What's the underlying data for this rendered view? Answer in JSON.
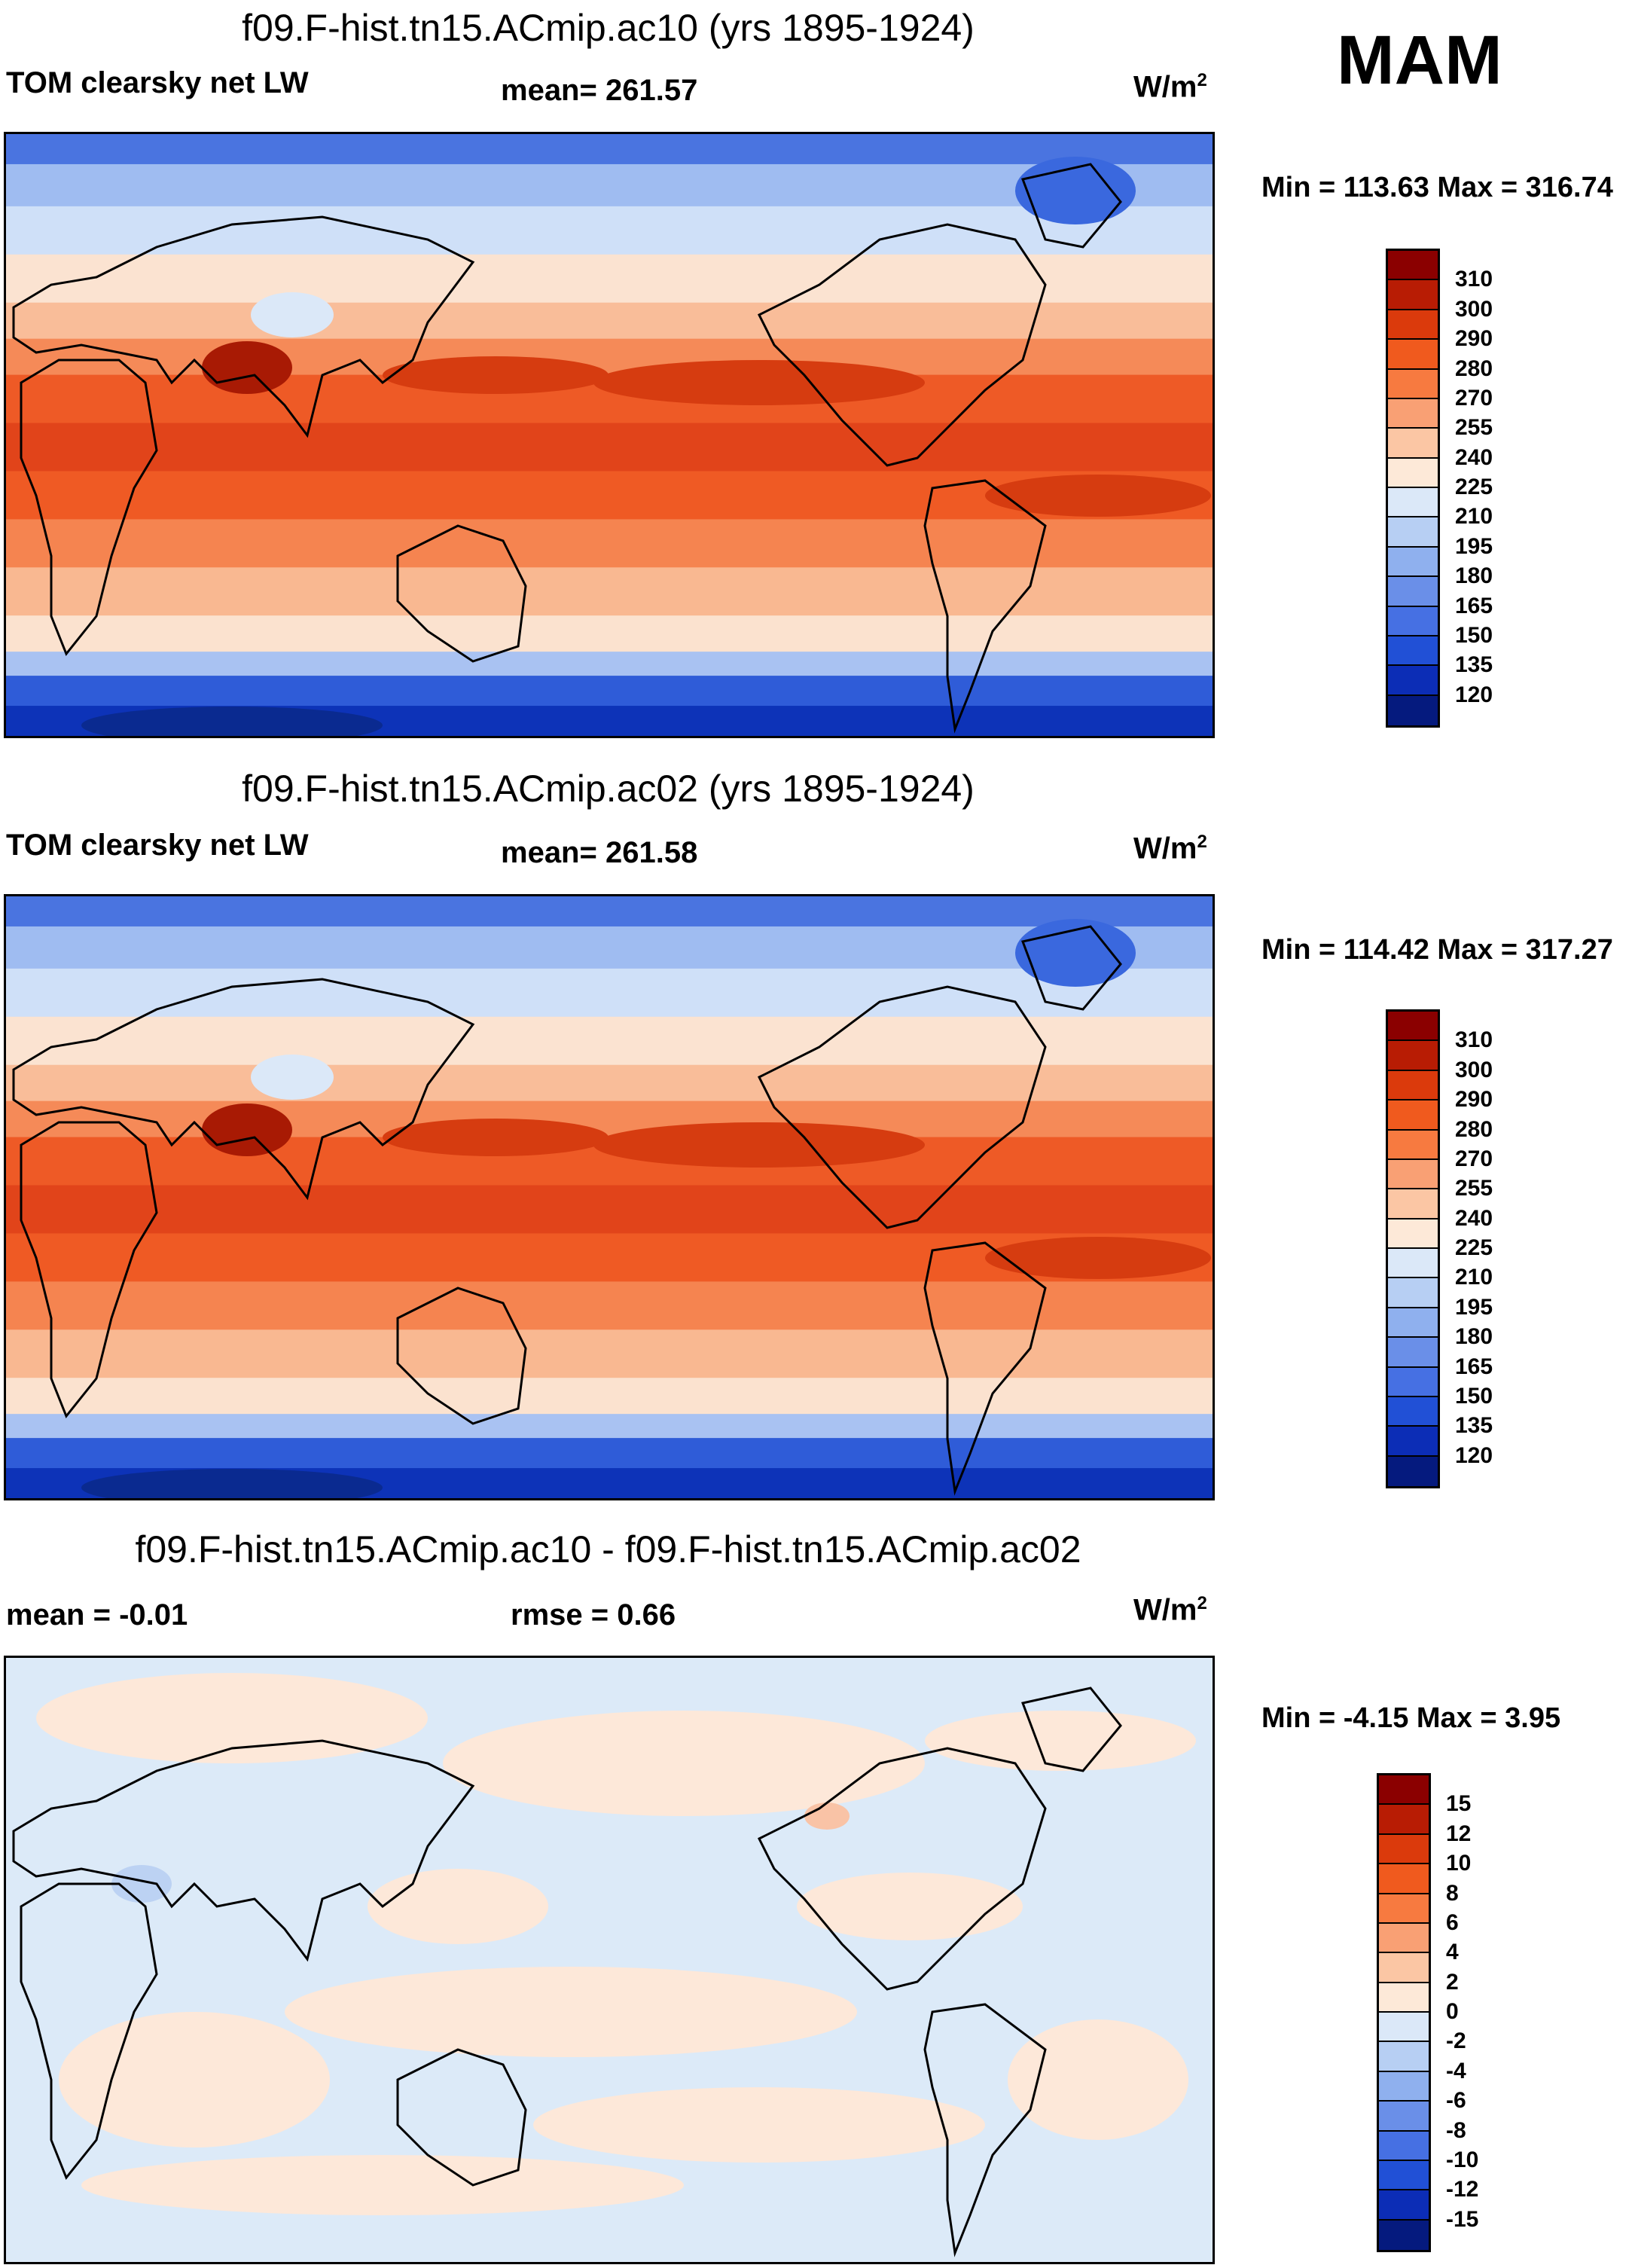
{
  "season": "MAM",
  "panels": [
    {
      "id": "ac10",
      "title": "f09.F-hist.tn15.ACmip.ac10 (yrs 1895-1924)",
      "variable": "TOM clearsky net LW",
      "stat": "mean= 261.57",
      "unit": "W/m",
      "unit_sup": "2",
      "minmax": "Min = 113.63 Max = 316.74",
      "levels": [
        "310",
        "300",
        "290",
        "280",
        "270",
        "255",
        "240",
        "225",
        "210",
        "195",
        "180",
        "165",
        "150",
        "135",
        "120"
      ]
    },
    {
      "id": "ac02",
      "title": "f09.F-hist.tn15.ACmip.ac02 (yrs 1895-1924)",
      "variable": "TOM clearsky net LW",
      "stat": "mean= 261.58",
      "unit": "W/m",
      "unit_sup": "2",
      "minmax": "Min = 114.42 Max = 317.27",
      "levels": [
        "310",
        "300",
        "290",
        "280",
        "270",
        "255",
        "240",
        "225",
        "210",
        "195",
        "180",
        "165",
        "150",
        "135",
        "120"
      ]
    },
    {
      "id": "diff",
      "title": "f09.F-hist.tn15.ACmip.ac10 - f09.F-hist.tn15.ACmip.ac02",
      "mean": "mean =  -0.01",
      "rmse": "rmse =   0.66",
      "unit": "W/m",
      "unit_sup": "2",
      "minmax": "Min =  -4.15 Max =   3.95",
      "levels": [
        "15",
        "12",
        "10",
        "8",
        "6",
        "4",
        "2",
        "0",
        "-2",
        "-4",
        "-6",
        "-8",
        "-10",
        "-12",
        "-15"
      ]
    }
  ],
  "colors": {
    "abs_colorbar": [
      "#8b0000",
      "#b81c04",
      "#db3a0c",
      "#f05a1e",
      "#f77a40",
      "#f9a074",
      "#fbc6a4",
      "#fde9d8",
      "#dbe8f8",
      "#b7cff3",
      "#8fb0ee",
      "#6a8fe8",
      "#4670e3",
      "#2150d6",
      "#0c2db6",
      "#051a7e"
    ],
    "diff_colorbar": [
      "#8b0000",
      "#b81c04",
      "#db3a0c",
      "#f05a1e",
      "#f77a40",
      "#f9a074",
      "#fbc6a4",
      "#fde9d8",
      "#dbe8f8",
      "#b7cff3",
      "#8fb0ee",
      "#6a8fe8",
      "#4670e3",
      "#2150d6",
      "#0c2db6",
      "#051a7e"
    ],
    "abs_map_bands": [
      "#4a74e0",
      "#9fbcf1",
      "#cfe0f8",
      "#fbe3d1",
      "#f9bd99",
      "#f58a58",
      "#ee5a26",
      "#e1441a",
      "#ef5a24",
      "#f58450",
      "#f9b891",
      "#fbe2cf",
      "#a9c2f2",
      "#2f5cd8",
      "#0d33b8"
    ],
    "diff_map": [
      "#dceaf8",
      "#fde8d9",
      "#bcd2f3",
      "#f9c3a6"
    ]
  }
}
